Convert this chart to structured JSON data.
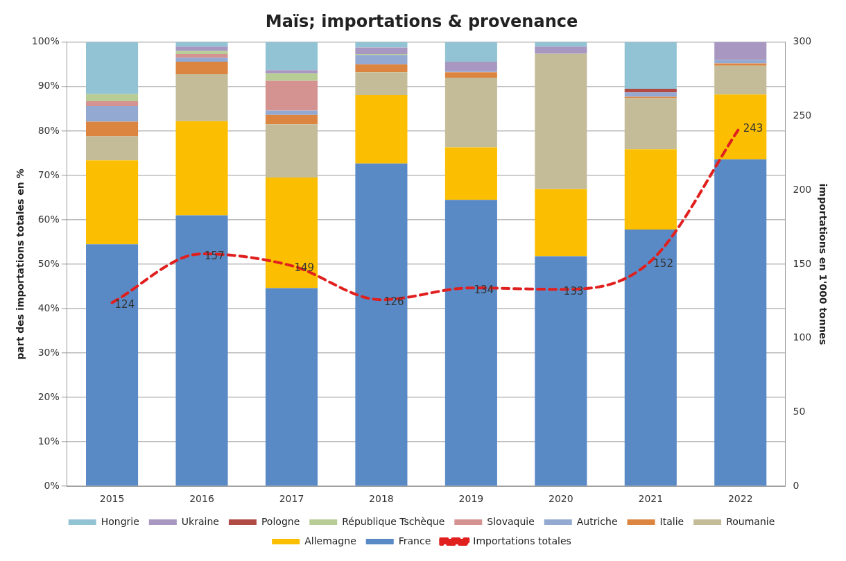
{
  "chart_data": {
    "type": "bar",
    "title": "Maïs; importations & provenance",
    "ylabel": "part des importations totales en %",
    "y2label": "importations en 1'000 tonnes",
    "categories": [
      "2015",
      "2016",
      "2017",
      "2018",
      "2019",
      "2020",
      "2021",
      "2022"
    ],
    "stacked": true,
    "grid": "y",
    "legend": "bottom",
    "ylim": [
      0,
      100
    ],
    "yticks": [
      {
        "value": 0,
        "label": "0%"
      },
      {
        "value": 10,
        "label": "10%"
      },
      {
        "value": 20,
        "label": "20%"
      },
      {
        "value": 30,
        "label": "30%"
      },
      {
        "value": 40,
        "label": "40%"
      },
      {
        "value": 50,
        "label": "50%"
      },
      {
        "value": 60,
        "label": "60%"
      },
      {
        "value": 70,
        "label": "70%"
      },
      {
        "value": 80,
        "label": "80%"
      },
      {
        "value": 90,
        "label": "90%"
      },
      {
        "value": 100,
        "label": "100%"
      }
    ],
    "y2lim": [
      0,
      300
    ],
    "y2ticks": [
      0,
      50,
      100,
      150,
      200,
      250,
      300
    ],
    "series": [
      {
        "name": "Importations totales",
        "type": "line",
        "axis": "y2",
        "color": "#e0201f",
        "line_style": "dashed",
        "marker": "none",
        "values": [
          124,
          157,
          149,
          126,
          134,
          133,
          152,
          243
        ],
        "value_labels": [
          "124",
          "157",
          "149",
          "126",
          "134",
          "133",
          "152",
          "243"
        ]
      },
      {
        "name": "France",
        "color": "#5a8ac6",
        "values": [
          54.5,
          61.0,
          44.6,
          72.7,
          64.5,
          51.8,
          57.8,
          73.6
        ]
      },
      {
        "name": "Allemagne",
        "color": "#fbbe00",
        "values": [
          18.9,
          21.2,
          24.9,
          15.4,
          11.8,
          15.1,
          18.1,
          14.6
        ]
      },
      {
        "name": "Roumanie",
        "color": "#c4bc98",
        "values": [
          5.4,
          10.6,
          12.0,
          5.1,
          15.7,
          30.5,
          11.5,
          6.5
        ]
      },
      {
        "name": "Italie",
        "color": "#dc8540",
        "values": [
          3.3,
          2.8,
          2.1,
          1.8,
          1.2,
          0,
          0.3,
          0.5
        ]
      },
      {
        "name": "Autriche",
        "color": "#93a9d1",
        "values": [
          3.5,
          0.9,
          1.0,
          2.1,
          0.3,
          0,
          1.0,
          0.8
        ]
      },
      {
        "name": "Slovaquie",
        "color": "#d49291",
        "values": [
          1.1,
          0.8,
          6.7,
          0,
          0,
          0,
          0,
          0
        ]
      },
      {
        "name": "République Tschèque",
        "color": "#b8cd95",
        "values": [
          1.6,
          0.7,
          1.7,
          0.2,
          0,
          0,
          0,
          0
        ]
      },
      {
        "name": "Pologne",
        "color": "#b04a44",
        "values": [
          0,
          0,
          0,
          0,
          0,
          0,
          0.8,
          0
        ]
      },
      {
        "name": "Ukraine",
        "color": "#a797c1",
        "values": [
          0,
          1.0,
          0.7,
          1.5,
          2.1,
          1.6,
          0,
          4.0
        ]
      },
      {
        "name": "Hongrie",
        "color": "#92c3d5",
        "values": [
          11.7,
          1.0,
          6.3,
          1.2,
          4.4,
          1.0,
          10.5,
          0
        ]
      }
    ]
  }
}
